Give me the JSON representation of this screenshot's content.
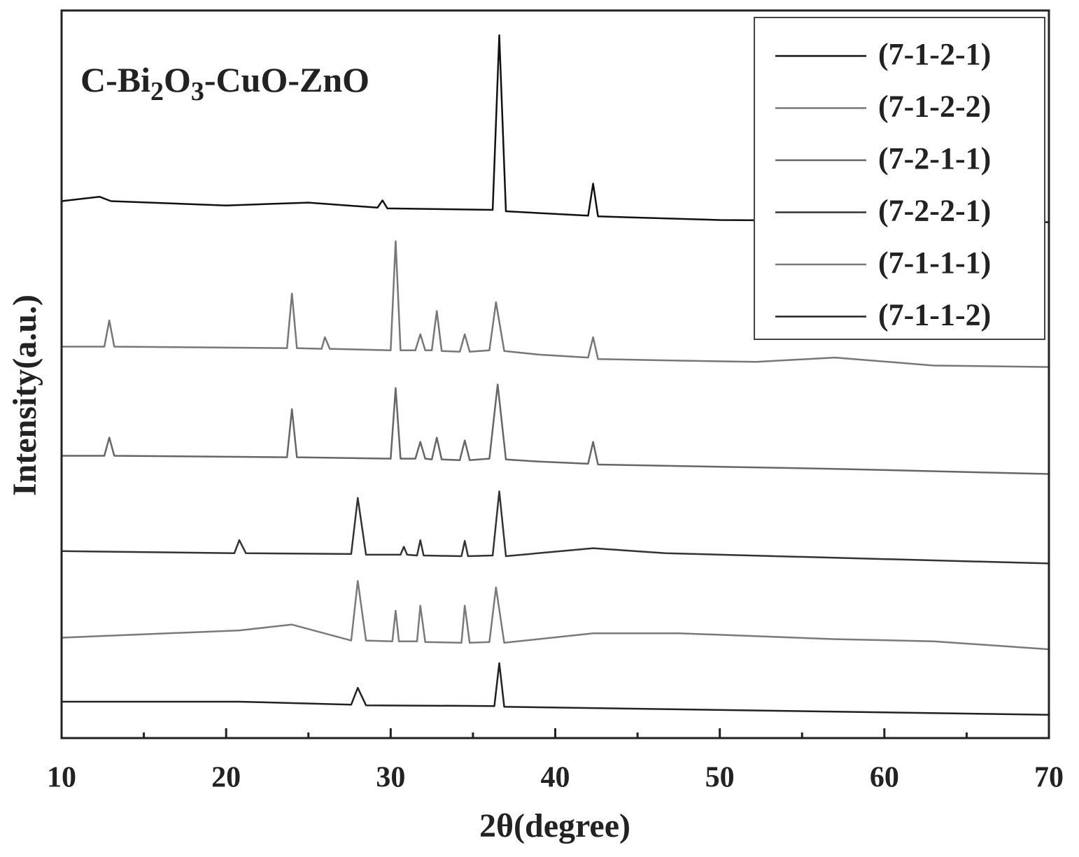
{
  "chart_data": {
    "type": "line",
    "annotation": [
      "C-Bi",
      "2",
      "O",
      "3",
      "-CuO-ZnO"
    ],
    "xlabel": "2θ(degree)",
    "ylabel": "Intensity(a.u.)",
    "xlim": [
      10,
      70
    ],
    "xticks": [
      10,
      20,
      30,
      40,
      50,
      60,
      70
    ],
    "xminor": [
      15,
      25,
      35,
      45,
      55,
      65
    ],
    "ylim": [
      0,
      100
    ],
    "legend": "upper right",
    "series": [
      {
        "name": "(7-1-2-1)",
        "color": "#111111",
        "x": [
          10,
          12.3,
          13,
          20,
          25,
          29.2,
          29.5,
          29.8,
          36.2,
          36.6,
          37.0,
          42.0,
          42.3,
          42.6,
          50,
          70
        ],
        "values": [
          73.8,
          74.4,
          73.8,
          73.2,
          73.6,
          72.9,
          73.9,
          72.8,
          72.6,
          96.6,
          72.4,
          71.8,
          76.2,
          71.7,
          71.2,
          70.9
        ]
      },
      {
        "name": "(7-1-2-2)",
        "color": "#777777",
        "x": [
          10,
          12.6,
          12.9,
          13.2,
          23.7,
          24.0,
          24.3,
          25.8,
          26.0,
          26.3,
          30.0,
          30.3,
          30.6,
          31.5,
          31.8,
          32.1,
          32.5,
          32.8,
          33.1,
          34.2,
          34.5,
          34.8,
          36.0,
          36.4,
          36.9,
          39,
          42.0,
          42.3,
          42.6,
          47,
          52.2,
          57,
          63,
          70
        ],
        "values": [
          53.8,
          53.8,
          57.4,
          53.8,
          53.6,
          61.1,
          53.6,
          53.5,
          55.1,
          53.5,
          53.3,
          68.3,
          53.3,
          53.3,
          55.5,
          53.3,
          53.3,
          58.7,
          53.2,
          53.1,
          55.5,
          53.1,
          53.3,
          59.9,
          53.2,
          52.7,
          52.3,
          55.1,
          52.1,
          51.9,
          51.7,
          52.3,
          51.2,
          51.0
        ]
      },
      {
        "name": "(7-2-1-1)",
        "color": "#666666",
        "x": [
          10,
          12.6,
          12.9,
          13.2,
          23.7,
          24.0,
          24.3,
          30.0,
          30.3,
          30.6,
          31.5,
          31.8,
          32.1,
          32.5,
          32.8,
          33.1,
          34.2,
          34.5,
          34.8,
          36.0,
          36.5,
          37.0,
          39,
          42.0,
          42.3,
          42.6,
          57,
          70
        ],
        "values": [
          38.8,
          38.8,
          41.3,
          38.8,
          38.6,
          45.2,
          38.6,
          38.4,
          48.1,
          38.4,
          38.4,
          40.7,
          38.4,
          38.3,
          41.3,
          38.3,
          38.2,
          40.9,
          38.2,
          38.4,
          48.6,
          38.3,
          38.0,
          37.7,
          40.7,
          37.6,
          37.0,
          36.3
        ]
      },
      {
        "name": "(7-2-2-1)",
        "color": "#333333",
        "x": [
          10,
          20.5,
          20.8,
          21.2,
          27.6,
          28.0,
          28.5,
          30.6,
          30.8,
          31.0,
          31.6,
          31.8,
          32.0,
          34.3,
          34.5,
          34.7,
          36.2,
          36.6,
          37.0,
          42.3,
          46.7,
          70
        ],
        "values": [
          25.7,
          25.4,
          27.2,
          25.4,
          25.3,
          33.0,
          25.2,
          25.2,
          26.3,
          25.2,
          25.1,
          27.2,
          25.1,
          25.0,
          27.1,
          25.0,
          25.1,
          33.9,
          25.0,
          26.1,
          25.4,
          24.0
        ]
      },
      {
        "name": "(7-1-1-1)",
        "color": "#7a7a7a",
        "x": [
          10,
          20.8,
          24.0,
          27.6,
          28.0,
          28.5,
          30.1,
          30.3,
          30.5,
          31.6,
          31.8,
          32.1,
          34.3,
          34.5,
          34.8,
          36.0,
          36.4,
          36.9,
          42.3,
          47.5,
          57,
          63,
          70
        ],
        "values": [
          13.8,
          14.8,
          15.6,
          13.4,
          21.6,
          13.4,
          13.3,
          17.5,
          13.3,
          13.3,
          18.2,
          13.2,
          13.1,
          18.2,
          13.1,
          13.2,
          20.7,
          13.1,
          14.4,
          14.4,
          13.6,
          13.3,
          12.2
        ]
      },
      {
        "name": "(7-1-1-2)",
        "color": "#222222",
        "x": [
          10,
          20.8,
          27.6,
          28.0,
          28.5,
          36.3,
          36.6,
          36.9,
          70
        ],
        "values": [
          5.0,
          5.0,
          4.6,
          6.9,
          4.5,
          4.4,
          10.3,
          4.3,
          3.2
        ]
      }
    ]
  }
}
